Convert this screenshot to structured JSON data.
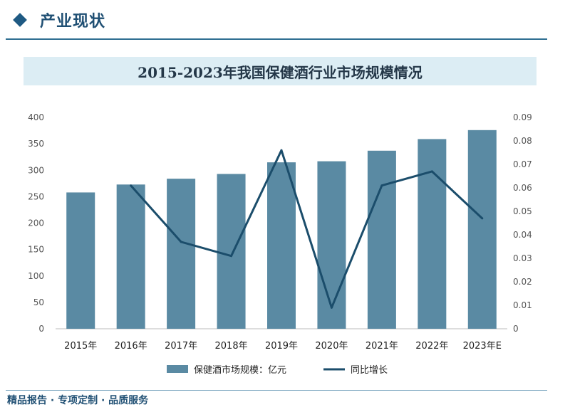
{
  "header": {
    "title": "产业现状"
  },
  "chart_data": {
    "type": "bar",
    "title": "2015-2023年我国保健酒行业市场规模情况",
    "categories": [
      "2015年",
      "2016年",
      "2017年",
      "2018年",
      "2019年",
      "2020年",
      "2021年",
      "2022年",
      "2023年E"
    ],
    "series": [
      {
        "name": "保健酒市场规模：亿元",
        "type": "bar",
        "axis": "left",
        "color": "#5a8aa3",
        "values": [
          258,
          273,
          284,
          293,
          315,
          317,
          337,
          359,
          376
        ]
      },
      {
        "name": "同比增长",
        "type": "line",
        "axis": "right",
        "color": "#1b4d6b",
        "values": [
          null,
          0.061,
          0.037,
          0.031,
          0.076,
          0.009,
          0.061,
          0.067,
          0.047
        ]
      }
    ],
    "ylim": [
      0,
      400
    ],
    "y_ticks": [
      0,
      50,
      100,
      150,
      200,
      250,
      300,
      350,
      400
    ],
    "y2lim": [
      0,
      0.09
    ],
    "y2_ticks": [
      "0",
      "0.01",
      "0.02",
      "0.03",
      "0.04",
      "0.05",
      "0.06",
      "0.07",
      "0.08",
      "0.09"
    ],
    "grid": false,
    "legend": "bottom"
  },
  "footer": {
    "text": "精品报告 · 专项定制 · 品质服务"
  }
}
